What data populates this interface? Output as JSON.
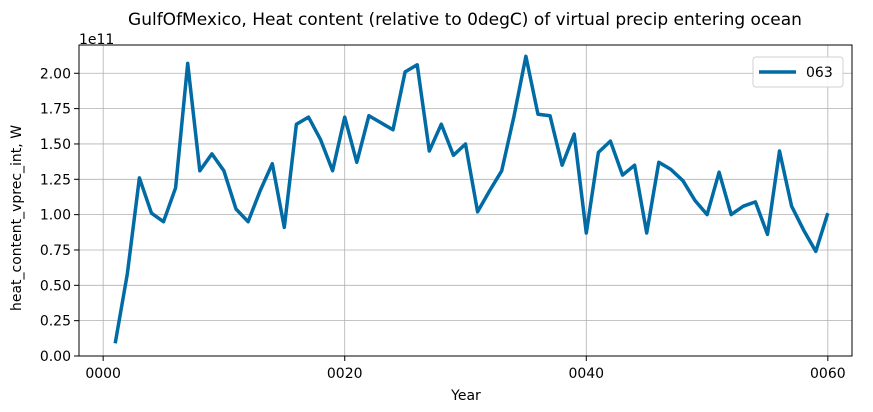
{
  "chart_data": {
    "type": "line",
    "title": "GulfOfMexico, Heat content (relative to 0degC) of virtual precip entering ocean",
    "xlabel": "Year",
    "ylabel": "heat_content_vprec_int, W",
    "y_offset_label": "1e11",
    "xlim": [
      -2,
      62
    ],
    "ylim": [
      0,
      2.2
    ],
    "x_ticks": [
      0,
      20,
      40,
      60
    ],
    "x_tick_labels": [
      "0000",
      "0020",
      "0040",
      "0060"
    ],
    "y_ticks": [
      0,
      0.25,
      0.5,
      0.75,
      1.0,
      1.25,
      1.5,
      1.75,
      2.0
    ],
    "y_tick_labels": [
      "0.00",
      "0.25",
      "0.50",
      "0.75",
      "1.00",
      "1.25",
      "1.50",
      "1.75",
      "2.00"
    ],
    "grid": true,
    "legend_position": "top-right",
    "series": [
      {
        "name": "063",
        "color": "#006ba4",
        "x": [
          1,
          2,
          3,
          4,
          5,
          6,
          7,
          8,
          9,
          10,
          11,
          12,
          13,
          14,
          15,
          16,
          17,
          18,
          19,
          20,
          21,
          22,
          23,
          24,
          25,
          26,
          27,
          28,
          29,
          30,
          31,
          32,
          33,
          34,
          35,
          36,
          37,
          38,
          39,
          40,
          41,
          42,
          43,
          44,
          45,
          46,
          47,
          48,
          49,
          50,
          51,
          52,
          53,
          54,
          55,
          56,
          57,
          58,
          59,
          60
        ],
        "y": [
          0.09,
          0.58,
          1.26,
          1.01,
          0.95,
          1.19,
          2.07,
          1.31,
          1.43,
          1.31,
          1.04,
          0.95,
          1.17,
          1.36,
          0.91,
          1.64,
          1.69,
          1.53,
          1.31,
          1.69,
          1.37,
          1.7,
          1.65,
          1.6,
          2.01,
          2.06,
          1.45,
          1.64,
          1.42,
          1.5,
          1.02,
          1.17,
          1.31,
          1.69,
          2.12,
          1.71,
          1.7,
          1.35,
          1.57,
          0.87,
          1.44,
          1.52,
          1.28,
          1.35,
          0.87,
          1.37,
          1.32,
          1.24,
          1.1,
          1.0,
          1.3,
          1.0,
          1.06,
          1.09,
          0.86,
          1.45,
          1.06,
          0.89,
          0.74,
          1.01
        ]
      }
    ]
  }
}
